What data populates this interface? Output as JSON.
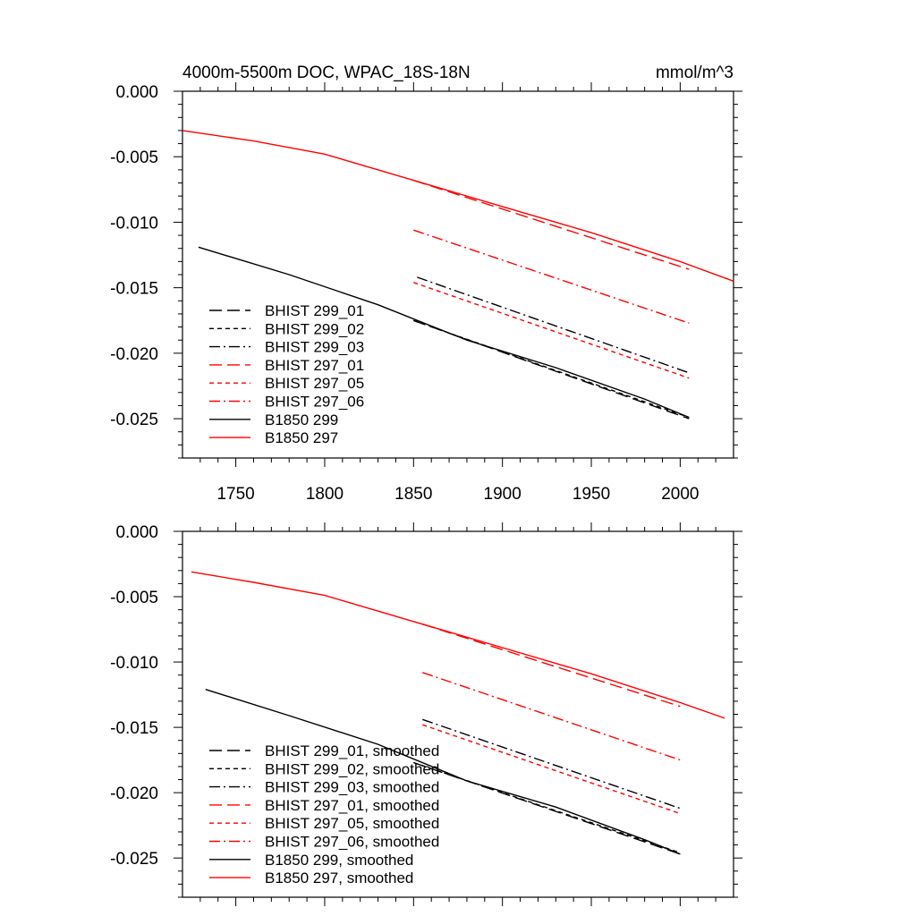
{
  "chart_data": [
    {
      "type": "line",
      "title": "4000m-5500m DOC, WPAC_18S-18N",
      "units": "mmol/m^3",
      "xlim": [
        1720,
        2030
      ],
      "ylim": [
        -0.028,
        0.0
      ],
      "x_ticks": [
        "1750",
        "1800",
        "1850",
        "1900",
        "1950",
        "2000"
      ],
      "y_ticks": [
        "0.000",
        "-0.005",
        "-0.010",
        "-0.015",
        "-0.020",
        "-0.025"
      ],
      "legend_position": "lower-left",
      "series": [
        {
          "name": "BHIST 299_01",
          "color": "#000000",
          "dash": "long-dash",
          "x": [
            1850,
            2005
          ],
          "y": [
            -0.0175,
            -0.025
          ]
        },
        {
          "name": "BHIST 299_02",
          "color": "#000000",
          "dash": "short-dash",
          "x": [
            1850,
            2005
          ],
          "y": [
            -0.0175,
            -0.0249
          ]
        },
        {
          "name": "BHIST 299_03",
          "color": "#000000",
          "dash": "dash-dot",
          "x": [
            1852,
            2005
          ],
          "y": [
            -0.0142,
            -0.0215
          ]
        },
        {
          "name": "BHIST 297_01",
          "color": "#ff0000",
          "dash": "long-dash",
          "x": [
            1850,
            2005
          ],
          "y": [
            -0.0068,
            -0.0136
          ]
        },
        {
          "name": "BHIST 297_05",
          "color": "#ff0000",
          "dash": "short-dash",
          "x": [
            1850,
            2005
          ],
          "y": [
            -0.0146,
            -0.0219
          ]
        },
        {
          "name": "BHIST 297_06",
          "color": "#ff0000",
          "dash": "dash-dot",
          "x": [
            1850,
            2005
          ],
          "y": [
            -0.0106,
            -0.0177
          ]
        },
        {
          "name": "B1850 299",
          "color": "#000000",
          "dash": "solid",
          "x": [
            1729,
            1780,
            1830,
            1880,
            1930,
            1980,
            2005
          ],
          "y": [
            -0.0119,
            -0.014,
            -0.0163,
            -0.019,
            -0.0211,
            -0.0235,
            -0.0249
          ]
        },
        {
          "name": "B1850 297",
          "color": "#ff0000",
          "dash": "solid",
          "x": [
            1720,
            1760,
            1800,
            1850,
            1900,
            1950,
            2000,
            2030
          ],
          "y": [
            -0.003,
            -0.0038,
            -0.0048,
            -0.0068,
            -0.0088,
            -0.0108,
            -0.013,
            -0.0145
          ]
        }
      ]
    },
    {
      "type": "line",
      "title": "",
      "units": "",
      "xlim": [
        1720,
        2030
      ],
      "ylim": [
        -0.028,
        0.0
      ],
      "x_ticks": [],
      "y_ticks": [
        "0.000",
        "-0.005",
        "-0.010",
        "-0.015",
        "-0.020",
        "-0.025"
      ],
      "legend_position": "lower-left",
      "series": [
        {
          "name": "BHIST 299_01, smoothed",
          "color": "#000000",
          "dash": "long-dash",
          "x": [
            1850,
            2000
          ],
          "y": [
            -0.0177,
            -0.0247
          ]
        },
        {
          "name": "BHIST 299_02, smoothed",
          "color": "#000000",
          "dash": "short-dash",
          "x": [
            1850,
            2000
          ],
          "y": [
            -0.0177,
            -0.0246
          ]
        },
        {
          "name": "BHIST 299_03, smoothed",
          "color": "#000000",
          "dash": "dash-dot",
          "x": [
            1855,
            2000
          ],
          "y": [
            -0.0144,
            -0.0212
          ]
        },
        {
          "name": "BHIST 297_01, smoothed",
          "color": "#ff0000",
          "dash": "long-dash",
          "x": [
            1855,
            2000
          ],
          "y": [
            -0.0071,
            -0.0134
          ]
        },
        {
          "name": "BHIST 297_05, smoothed",
          "color": "#ff0000",
          "dash": "short-dash",
          "x": [
            1855,
            2000
          ],
          "y": [
            -0.0148,
            -0.0216
          ]
        },
        {
          "name": "BHIST 297_06, smoothed",
          "color": "#ff0000",
          "dash": "dash-dot",
          "x": [
            1855,
            2000
          ],
          "y": [
            -0.0108,
            -0.0175
          ]
        },
        {
          "name": "B1850 299, smoothed",
          "color": "#000000",
          "dash": "solid",
          "x": [
            1733,
            1780,
            1830,
            1880,
            1930,
            1980,
            2000
          ],
          "y": [
            -0.0121,
            -0.0141,
            -0.0163,
            -0.0191,
            -0.0211,
            -0.0236,
            -0.0247
          ]
        },
        {
          "name": "B1850 297, smoothed",
          "color": "#ff0000",
          "dash": "solid",
          "x": [
            1725,
            1760,
            1800,
            1850,
            1900,
            1950,
            2000,
            2025
          ],
          "y": [
            -0.0031,
            -0.0039,
            -0.0049,
            -0.0069,
            -0.0089,
            -0.0109,
            -0.0131,
            -0.0143
          ]
        }
      ]
    }
  ]
}
